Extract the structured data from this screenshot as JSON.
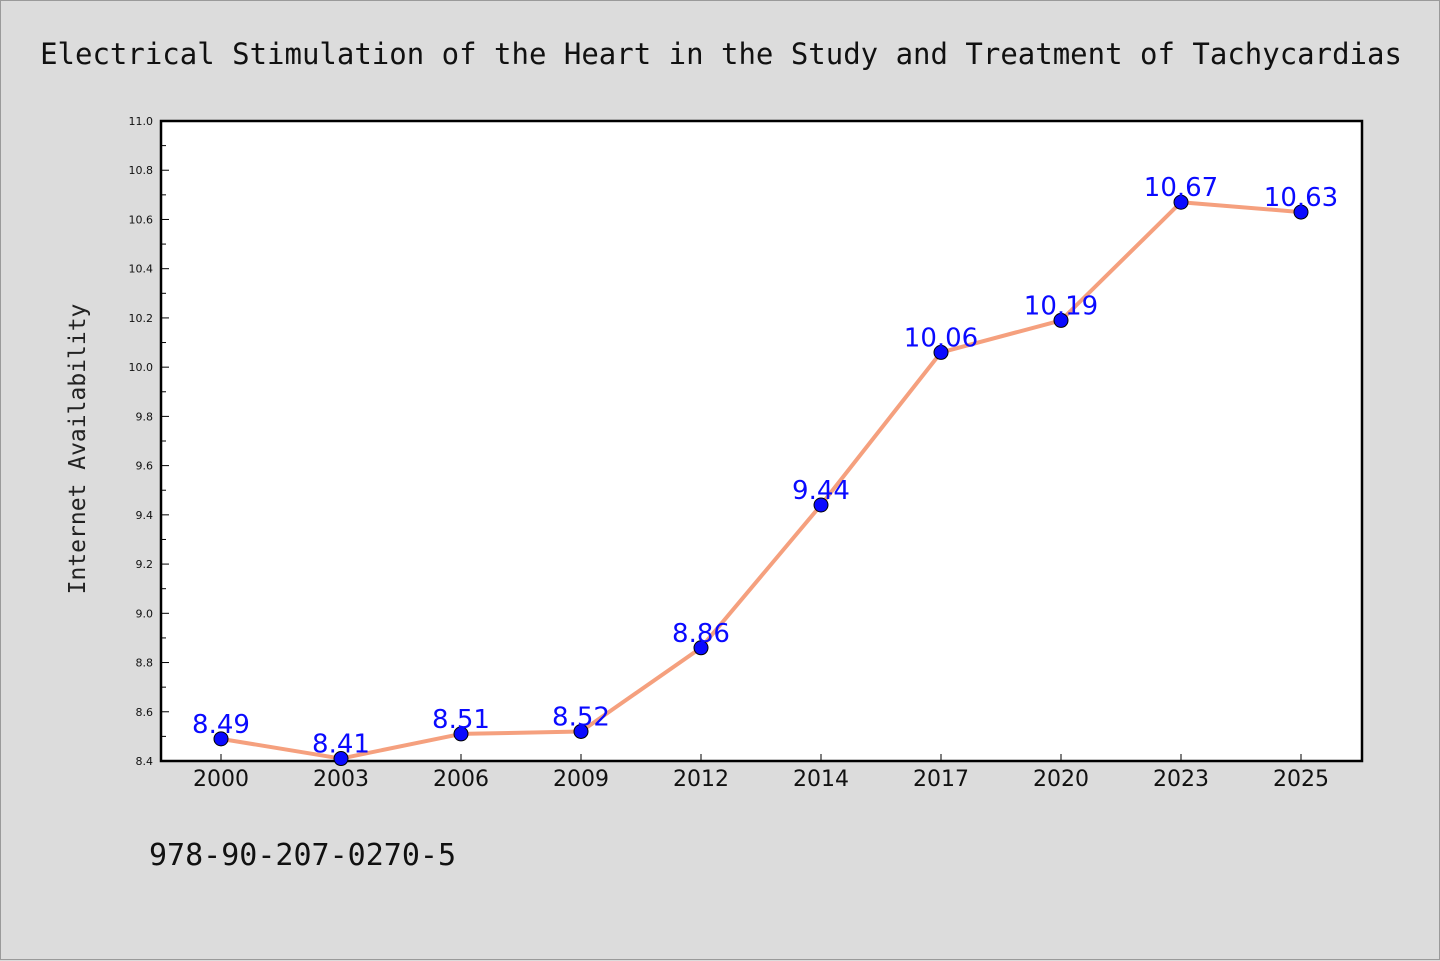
{
  "chart_data": {
    "type": "line",
    "title": "Electrical Stimulation of the Heart in the Study and Treatment of Tachycardias",
    "xlabel": "",
    "ylabel": "Internet Availability",
    "categories": [
      "2000",
      "2003",
      "2006",
      "2009",
      "2012",
      "2014",
      "2017",
      "2020",
      "2023",
      "2025"
    ],
    "series": [
      {
        "values": [
          8.49,
          8.41,
          8.51,
          8.52,
          8.86,
          9.44,
          10.06,
          10.19,
          10.67,
          10.63
        ],
        "data_labels": [
          "8.49",
          "8.41",
          "8.51",
          "8.52",
          "8.86",
          "9.44",
          "10.06",
          "10.19",
          "10.67",
          "10.63"
        ]
      }
    ],
    "ylim": [
      8.4,
      11.0
    ],
    "yticks": [
      "8.4",
      "8.6",
      "8.8",
      "9.0",
      "9.2",
      "9.4",
      "9.6",
      "9.8",
      "10.0",
      "10.2",
      "10.4",
      "10.6",
      "10.8",
      "11.0"
    ],
    "grid": false,
    "legend": "none",
    "line_color": "#f5a07e",
    "marker_color": "#0a0aff",
    "label_color": "#0a0aff",
    "plot_background": "#ffffff",
    "figure_background": "#dcdcdc"
  },
  "footer": {
    "text": "978-90-207-0270-5"
  }
}
